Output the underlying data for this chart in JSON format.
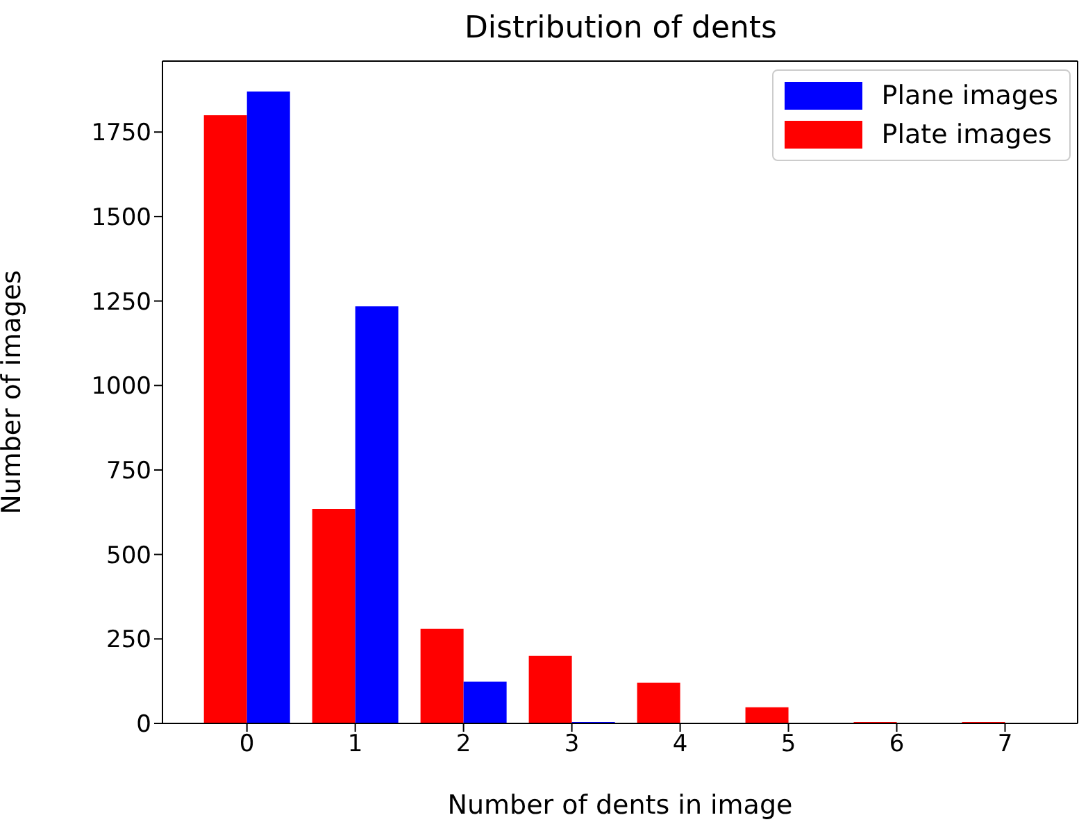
{
  "chart_data": {
    "type": "bar",
    "title": "Distribution of dents",
    "xlabel": "Number of dents in image",
    "ylabel": "Number of images",
    "x": [
      0,
      1,
      2,
      3,
      4,
      5,
      6,
      7
    ],
    "xlim": [
      -0.78,
      7.67
    ],
    "xticks": [
      0,
      1,
      2,
      3,
      4,
      5,
      6,
      7
    ],
    "ylim": [
      0,
      1960
    ],
    "yticks": [
      0,
      250,
      500,
      750,
      1000,
      1250,
      1500,
      1750
    ],
    "series": [
      {
        "name": "Plane images",
        "color": "#0000ff",
        "values": [
          1870,
          1234,
          124,
          4,
          0,
          0,
          0,
          0
        ]
      },
      {
        "name": "Plate images",
        "color": "#ff0000",
        "values": [
          1800,
          635,
          280,
          200,
          120,
          48,
          4,
          4
        ]
      }
    ],
    "legend": "top right"
  }
}
